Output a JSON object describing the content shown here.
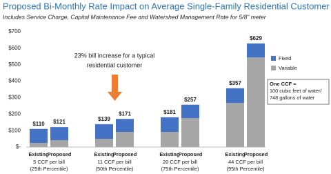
{
  "chart_data": {
    "type": "bar",
    "stacked": true,
    "title": "Proposed Bi-Monthly Rate Impact on Average Single-Family Residential Customer",
    "subtitle": "Includes Service Charge, Capital Maintenance Fee and Watershed Management Rate for 5/8\" meter",
    "categories": [
      "Existing",
      "Proposed",
      "Existing",
      "Proposed",
      "Existing",
      "Proposed",
      "Existing",
      "Proposed"
    ],
    "groups": [
      {
        "label": "5 CCF per bill",
        "percentile": "(25th Percentile)"
      },
      {
        "label": "11 CCF per bill",
        "percentile": "(50th Percentile)"
      },
      {
        "label": "20 CCF per bill",
        "percentile": "(75th Percentile)"
      },
      {
        "label": "44 CCF per bill",
        "percentile": "(95th Percentile)"
      }
    ],
    "series": [
      {
        "name": "Fixed",
        "color": "#4472c4",
        "values": [
          85,
          79,
          89,
          79,
          89,
          81,
          89,
          85
        ]
      },
      {
        "name": "Variable",
        "color": "#a6a6a6",
        "values": [
          25,
          42,
          50,
          92,
          92,
          176,
          268,
          544
        ]
      }
    ],
    "totals": [
      110,
      121,
      139,
      171,
      181,
      257,
      357,
      629
    ],
    "total_labels": [
      "$110",
      "$121",
      "$139",
      "$171",
      "$181",
      "$257",
      "$357",
      "$629"
    ],
    "ylim": [
      0,
      700
    ],
    "yticks": [
      {
        "value": 0,
        "label": "$-"
      },
      {
        "value": 100,
        "label": "$100"
      },
      {
        "value": 200,
        "label": "$200"
      },
      {
        "value": 300,
        "label": "$300"
      },
      {
        "value": 400,
        "label": "$400"
      },
      {
        "value": 500,
        "label": "$500"
      },
      {
        "value": 600,
        "label": "$600"
      },
      {
        "value": 700,
        "label": "$700"
      }
    ],
    "annotation": [
      "23% bill increase for a typical",
      "residential customer"
    ],
    "arrow_color": "#ed7d31",
    "note": {
      "title": "One CCF =",
      "lines": [
        "100 cubic feet of water/",
        "748 gallons of water"
      ]
    },
    "legend": "right"
  }
}
